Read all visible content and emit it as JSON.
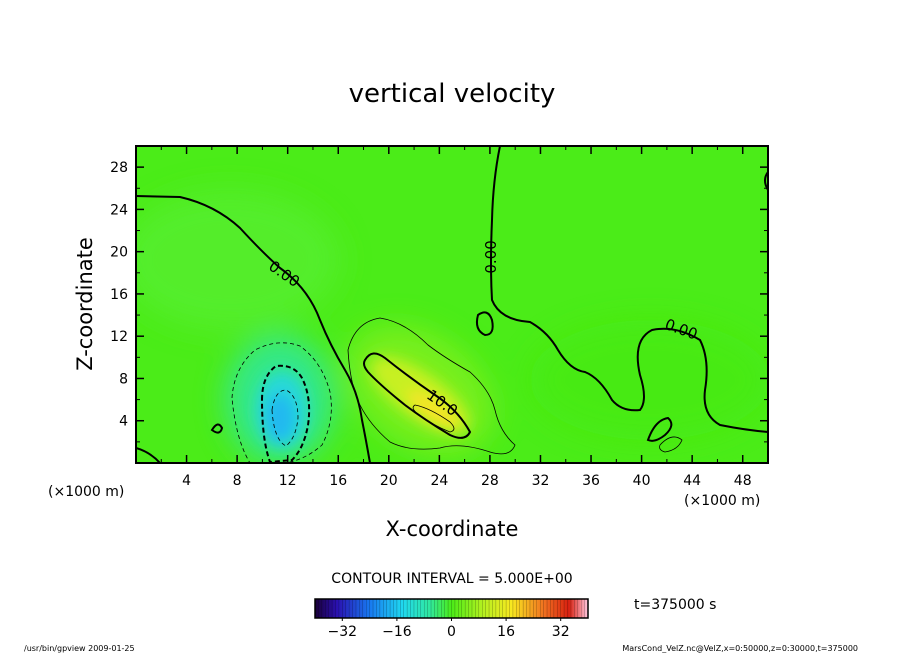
{
  "chart_data": {
    "type": "heatmap",
    "title": "vertical velocity",
    "xlabel": "X-coordinate",
    "ylabel": "Z-coordinate",
    "x_unit": "(×1000 m)",
    "y_unit": "(×1000 m)",
    "xlim": [
      0,
      50
    ],
    "ylim": [
      0,
      30
    ],
    "x_ticks": [
      4,
      8,
      12,
      16,
      20,
      24,
      28,
      32,
      36,
      40,
      44,
      48
    ],
    "y_ticks": [
      4,
      8,
      12,
      16,
      20,
      24,
      28
    ],
    "contour_interval": "CONTOUR INTERVAL = 5.000E+00",
    "time": "t=375000 s",
    "colorbar": {
      "range": [
        -40,
        40
      ],
      "ticks": [
        -32,
        -16,
        0,
        16,
        32
      ],
      "tick_labels": [
        "−32",
        "−16",
        "0",
        "16",
        "32"
      ]
    },
    "contour_labels": [
      {
        "text": "0.00",
        "x": 11.5,
        "y": 17.5,
        "angle": 35
      },
      {
        "text": "0.00",
        "x": 28.5,
        "y": 19.5,
        "angle": -90
      },
      {
        "text": "0.00",
        "x": 43.0,
        "y": 12.2,
        "angle": 20
      },
      {
        "text": "10.0",
        "x": 24.0,
        "y": 5.3,
        "angle": 35
      }
    ],
    "features": [
      {
        "name": "downdraft",
        "x": 11.0,
        "y": 5.0,
        "peak": -18
      },
      {
        "name": "updraft",
        "x": 23.0,
        "y": 5.5,
        "peak": 16
      }
    ]
  },
  "footer": {
    "left": "/usr/bin/gpview   2009-01-25",
    "right": "MarsCond_VelZ.nc@VelZ,x=0:50000,z=0:30000,t=375000"
  },
  "colors": {
    "field": "#4bec18",
    "contour": "#000000"
  }
}
